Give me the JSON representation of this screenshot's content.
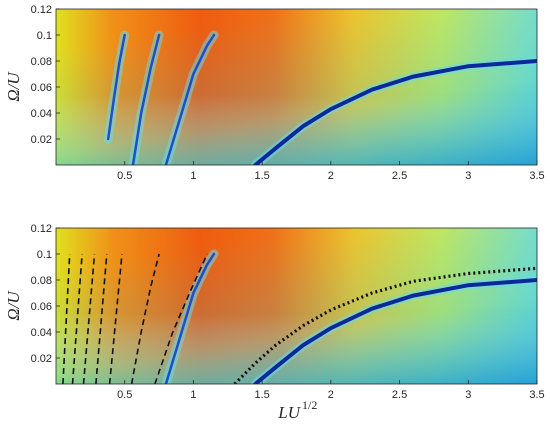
{
  "chart_data": [
    {
      "type": "heatmap",
      "title": "",
      "xlabel": "",
      "ylabel": "Ω/U",
      "xlim": [
        0,
        3.5
      ],
      "ylim": [
        0,
        0.12
      ],
      "xticks": [
        "0.5",
        "1",
        "1.5",
        "2",
        "2.5",
        "3",
        "3.5"
      ],
      "yticks": [
        "0.02",
        "0.04",
        "0.06",
        "0.08",
        "0.1",
        "0.12"
      ],
      "colormap": "jet",
      "color_low": "#0a2a9a",
      "color_high": "#e84d10",
      "curves": [
        {
          "x": [
            1.45,
            1.6,
            1.8,
            2.0,
            2.3,
            2.6,
            3.0,
            3.5
          ],
          "y": [
            0.0,
            0.013,
            0.03,
            0.043,
            0.058,
            0.068,
            0.076,
            0.08
          ]
        },
        {
          "x": [
            0.8,
            0.9,
            1.0,
            1.1,
            1.15
          ],
          "y": [
            0.0,
            0.035,
            0.07,
            0.092,
            0.1
          ]
        },
        {
          "x": [
            0.56,
            0.62,
            0.69,
            0.75
          ],
          "y": [
            0.0,
            0.04,
            0.075,
            0.1
          ]
        },
        {
          "x": [
            0.38,
            0.42,
            0.46,
            0.5
          ],
          "y": [
            0.02,
            0.05,
            0.078,
            0.1
          ]
        }
      ]
    },
    {
      "type": "heatmap",
      "title": "",
      "xlabel": "LU",
      "xlabel_exponent": "1/2",
      "ylabel": "Ω/U",
      "xlim": [
        0,
        3.5
      ],
      "ylim": [
        0,
        0.12
      ],
      "xticks": [
        "0.5",
        "1",
        "1.5",
        "2",
        "2.5",
        "3",
        "3.5"
      ],
      "yticks": [
        "0.02",
        "0.04",
        "0.06",
        "0.08",
        "0.1",
        "0.12"
      ],
      "colormap": "jet",
      "color_low": "#0a2a9a",
      "color_high": "#e84d10",
      "curves": [
        {
          "x": [
            1.45,
            1.6,
            1.8,
            2.0,
            2.3,
            2.6,
            3.0,
            3.5
          ],
          "y": [
            0.0,
            0.013,
            0.03,
            0.043,
            0.058,
            0.068,
            0.076,
            0.08
          ]
        },
        {
          "x": [
            0.8,
            0.9,
            1.0,
            1.1,
            1.15
          ],
          "y": [
            0.0,
            0.035,
            0.07,
            0.092,
            0.1
          ]
        }
      ],
      "dotted_curve": {
        "x": [
          1.3,
          1.45,
          1.6,
          1.8,
          2.0,
          2.3,
          2.6,
          3.0,
          3.5
        ],
        "y": [
          0.0,
          0.016,
          0.03,
          0.045,
          0.057,
          0.07,
          0.079,
          0.085,
          0.089
        ]
      },
      "dashed_curves": [
        {
          "x": [
            0.05,
            0.1
          ],
          "y": [
            0.0,
            0.1
          ]
        },
        {
          "x": [
            0.12,
            0.19
          ],
          "y": [
            0.0,
            0.1
          ]
        },
        {
          "x": [
            0.2,
            0.28
          ],
          "y": [
            0.0,
            0.1
          ]
        },
        {
          "x": [
            0.29,
            0.37
          ],
          "y": [
            0.0,
            0.1
          ]
        },
        {
          "x": [
            0.39,
            0.48
          ],
          "y": [
            0.0,
            0.1
          ]
        },
        {
          "x": [
            0.55,
            0.62,
            0.69,
            0.75
          ],
          "y": [
            0.0,
            0.04,
            0.075,
            0.1
          ]
        },
        {
          "x": [
            0.72,
            0.85,
            0.98,
            1.1
          ],
          "y": [
            0.0,
            0.04,
            0.072,
            0.1
          ]
        }
      ]
    }
  ]
}
